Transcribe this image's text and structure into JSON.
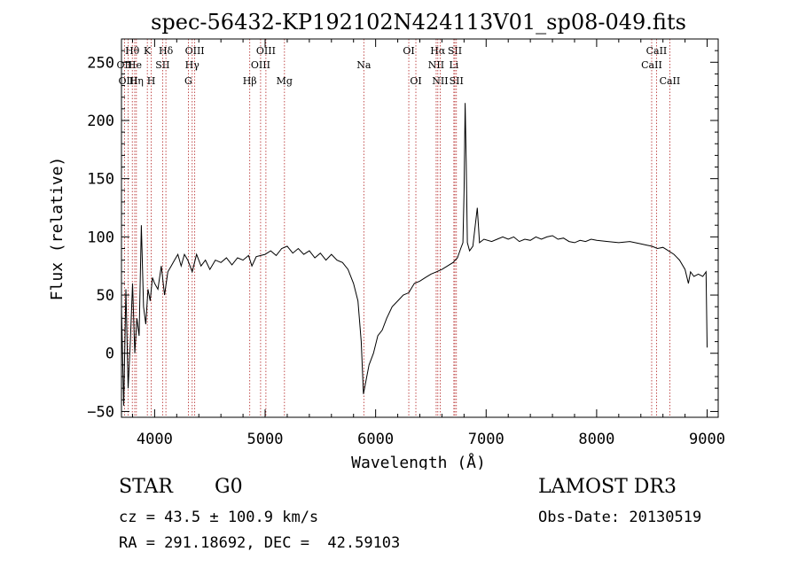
{
  "chart_data": {
    "type": "line",
    "title": "spec-56432-KP192102N424113V01_sp08-049.fits",
    "xlabel": "Wavelength (Å)",
    "ylabel": "Flux (relative)",
    "xlim": [
      3700,
      9100
    ],
    "ylim": [
      -55,
      270
    ],
    "xticks": [
      4000,
      5000,
      6000,
      7000,
      8000,
      9000
    ],
    "xtick_labels": [
      "4000",
      "5000",
      "6000",
      "7000",
      "8000",
      "9000"
    ],
    "yticks": [
      -50,
      0,
      50,
      100,
      150,
      200,
      250
    ],
    "ytick_labels": [
      "−50",
      "0",
      "50",
      "100",
      "150",
      "200",
      "250"
    ],
    "series": [
      {
        "name": "flux",
        "color": "#000000",
        "points": [
          [
            3700,
            40
          ],
          [
            3720,
            -45
          ],
          [
            3740,
            55
          ],
          [
            3760,
            -30
          ],
          [
            3780,
            10
          ],
          [
            3800,
            60
          ],
          [
            3820,
            0
          ],
          [
            3840,
            30
          ],
          [
            3860,
            15
          ],
          [
            3880,
            110
          ],
          [
            3900,
            40
          ],
          [
            3920,
            25
          ],
          [
            3940,
            55
          ],
          [
            3960,
            45
          ],
          [
            3980,
            65
          ],
          [
            4000,
            60
          ],
          [
            4030,
            55
          ],
          [
            4060,
            75
          ],
          [
            4090,
            50
          ],
          [
            4120,
            70
          ],
          [
            4150,
            75
          ],
          [
            4180,
            80
          ],
          [
            4210,
            85
          ],
          [
            4240,
            75
          ],
          [
            4270,
            85
          ],
          [
            4300,
            80
          ],
          [
            4340,
            70
          ],
          [
            4380,
            85
          ],
          [
            4420,
            75
          ],
          [
            4460,
            80
          ],
          [
            4500,
            72
          ],
          [
            4550,
            80
          ],
          [
            4600,
            78
          ],
          [
            4650,
            82
          ],
          [
            4700,
            76
          ],
          [
            4750,
            82
          ],
          [
            4800,
            80
          ],
          [
            4850,
            84
          ],
          [
            4880,
            75
          ],
          [
            4920,
            83
          ],
          [
            4960,
            84
          ],
          [
            5000,
            85
          ],
          [
            5050,
            88
          ],
          [
            5100,
            84
          ],
          [
            5150,
            90
          ],
          [
            5200,
            92
          ],
          [
            5250,
            86
          ],
          [
            5300,
            90
          ],
          [
            5350,
            85
          ],
          [
            5400,
            88
          ],
          [
            5450,
            82
          ],
          [
            5500,
            86
          ],
          [
            5550,
            80
          ],
          [
            5600,
            85
          ],
          [
            5650,
            80
          ],
          [
            5700,
            78
          ],
          [
            5750,
            72
          ],
          [
            5800,
            60
          ],
          [
            5840,
            45
          ],
          [
            5870,
            10
          ],
          [
            5890,
            -35
          ],
          [
            5910,
            -25
          ],
          [
            5940,
            -10
          ],
          [
            5980,
            0
          ],
          [
            6020,
            15
          ],
          [
            6060,
            20
          ],
          [
            6100,
            30
          ],
          [
            6150,
            40
          ],
          [
            6200,
            45
          ],
          [
            6250,
            50
          ],
          [
            6300,
            52
          ],
          [
            6350,
            60
          ],
          [
            6400,
            62
          ],
          [
            6450,
            65
          ],
          [
            6500,
            68
          ],
          [
            6550,
            70
          ],
          [
            6600,
            72
          ],
          [
            6650,
            75
          ],
          [
            6700,
            78
          ],
          [
            6740,
            82
          ],
          [
            6770,
            90
          ],
          [
            6790,
            95
          ],
          [
            6800,
            140
          ],
          [
            6810,
            215
          ],
          [
            6820,
            165
          ],
          [
            6830,
            95
          ],
          [
            6850,
            88
          ],
          [
            6880,
            92
          ],
          [
            6920,
            125
          ],
          [
            6940,
            95
          ],
          [
            6980,
            98
          ],
          [
            7050,
            96
          ],
          [
            7100,
            98
          ],
          [
            7150,
            100
          ],
          [
            7200,
            98
          ],
          [
            7250,
            100
          ],
          [
            7300,
            96
          ],
          [
            7350,
            98
          ],
          [
            7400,
            97
          ],
          [
            7450,
            100
          ],
          [
            7500,
            98
          ],
          [
            7550,
            100
          ],
          [
            7600,
            101
          ],
          [
            7650,
            98
          ],
          [
            7700,
            99
          ],
          [
            7750,
            96
          ],
          [
            7800,
            95
          ],
          [
            7850,
            97
          ],
          [
            7900,
            96
          ],
          [
            7950,
            98
          ],
          [
            8000,
            97
          ],
          [
            8100,
            96
          ],
          [
            8200,
            95
          ],
          [
            8300,
            96
          ],
          [
            8400,
            94
          ],
          [
            8450,
            93
          ],
          [
            8500,
            92
          ],
          [
            8550,
            90
          ],
          [
            8600,
            91
          ],
          [
            8650,
            88
          ],
          [
            8700,
            85
          ],
          [
            8750,
            80
          ],
          [
            8800,
            72
          ],
          [
            8830,
            60
          ],
          [
            8850,
            70
          ],
          [
            8880,
            66
          ],
          [
            8920,
            68
          ],
          [
            8960,
            66
          ],
          [
            8990,
            70
          ],
          [
            9000,
            5
          ]
        ]
      }
    ],
    "line_markers": [
      {
        "label": "Hθ",
        "x": 3798,
        "row": 1
      },
      {
        "label": "OII",
        "x": 3727,
        "row": 2
      },
      {
        "label": "OIII",
        "x": 3760,
        "row": 3
      },
      {
        "label": "He",
        "x": 3820,
        "row": 2
      },
      {
        "label": "Hη",
        "x": 3835,
        "row": 3
      },
      {
        "label": "K",
        "x": 3934,
        "row": 1
      },
      {
        "label": "H",
        "x": 3969,
        "row": 3
      },
      {
        "label": "SII",
        "x": 4072,
        "row": 2
      },
      {
        "label": "Hδ",
        "x": 4102,
        "row": 1
      },
      {
        "label": "OIII",
        "x": 4363,
        "row": 1
      },
      {
        "label": "Hγ",
        "x": 4340,
        "row": 2
      },
      {
        "label": "G",
        "x": 4305,
        "row": 3
      },
      {
        "label": "Hβ",
        "x": 4861,
        "row": 3
      },
      {
        "label": "OIII",
        "x": 5007,
        "row": 1
      },
      {
        "label": "OIII",
        "x": 4959,
        "row": 2
      },
      {
        "label": "Mg",
        "x": 5175,
        "row": 3
      },
      {
        "label": "Na",
        "x": 5893,
        "row": 2
      },
      {
        "label": "OI",
        "x": 6300,
        "row": 1
      },
      {
        "label": "OI",
        "x": 6364,
        "row": 3
      },
      {
        "label": "Hα",
        "x": 6563,
        "row": 1
      },
      {
        "label": "NII",
        "x": 6548,
        "row": 2
      },
      {
        "label": "NII",
        "x": 6584,
        "row": 3
      },
      {
        "label": "SII",
        "x": 6717,
        "row": 1
      },
      {
        "label": "Li",
        "x": 6708,
        "row": 2
      },
      {
        "label": "SII",
        "x": 6731,
        "row": 3
      },
      {
        "label": "CaII",
        "x": 8542,
        "row": 1
      },
      {
        "label": "CaII",
        "x": 8498,
        "row": 2
      },
      {
        "label": "CaII",
        "x": 8662,
        "row": 3
      }
    ],
    "marker_color": "#b22222",
    "grid": false
  },
  "info": {
    "object_class": "STAR",
    "subclass": "G0",
    "survey": "LAMOST DR3",
    "redshift_text": "cz = 43.5 ± 100.9 km/s",
    "obs_date_text": "Obs-Date: 20130519",
    "coords_text": "RA = 291.18692, DEC =  42.59103"
  }
}
